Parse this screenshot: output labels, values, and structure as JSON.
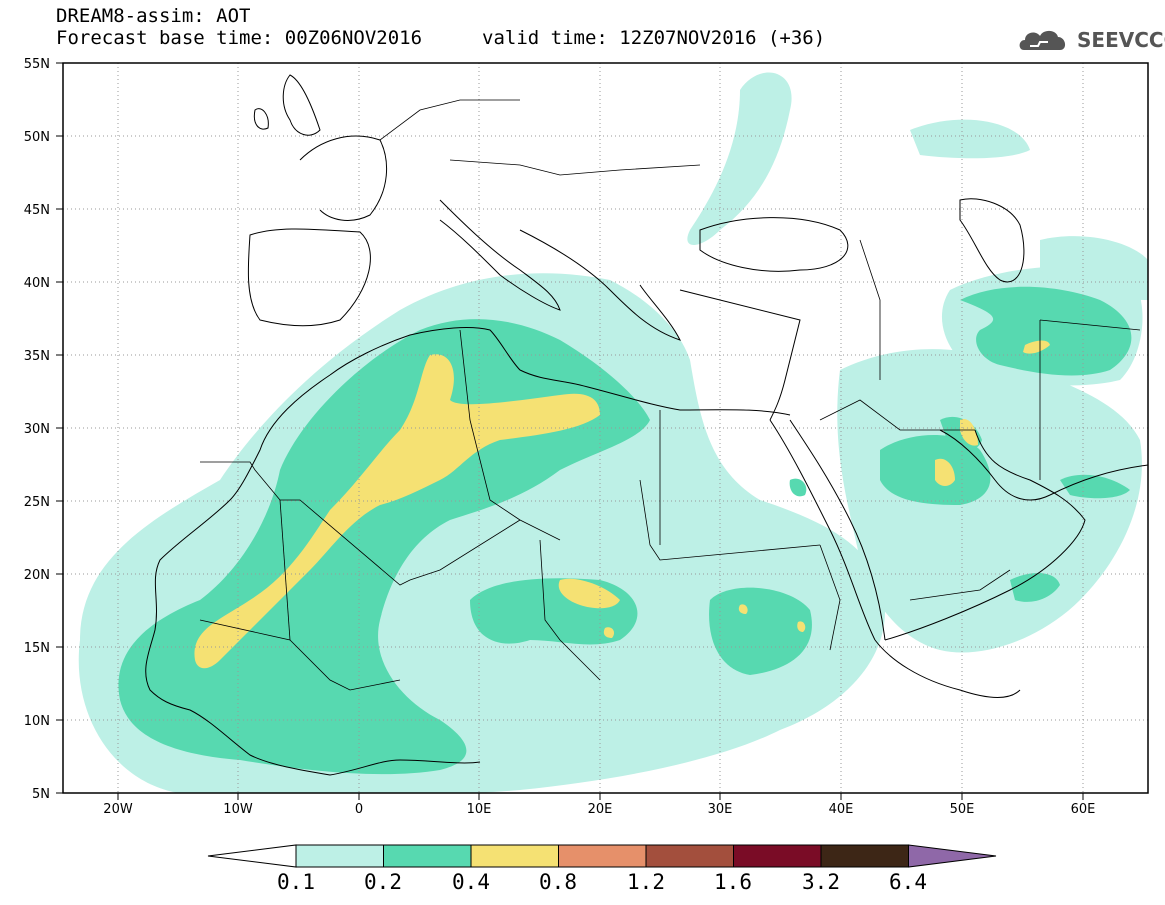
{
  "header": {
    "title": "DREAM8-assim: AOT",
    "base_time": "Forecast base time: 00Z06NOV2016",
    "valid_time": "valid time: 12Z07NOV2016 (+36)"
  },
  "logo": {
    "text": "SEEVCCC",
    "icon": "cloud-icon"
  },
  "map": {
    "lon_range": [
      -25,
      65
    ],
    "lat_range": [
      5,
      55
    ],
    "lat_ticks": [
      "55N",
      "50N",
      "45N",
      "40N",
      "35N",
      "30N",
      "25N",
      "20N",
      "15N",
      "10N",
      "5N"
    ],
    "lon_ticks": [
      "20W",
      "10W",
      "0",
      "10E",
      "20E",
      "30E",
      "40E",
      "50E",
      "60E"
    ]
  },
  "colorbar": {
    "labels": [
      "0.1",
      "0.2",
      "0.4",
      "0.8",
      "1.2",
      "1.6",
      "3.2",
      "6.4"
    ],
    "colors": [
      "#bdf0e6",
      "#57d9b0",
      "#f5e173",
      "#e6906a",
      "#a34f3d",
      "#7a0c26",
      "#3d2616",
      "#8f68a8"
    ]
  }
}
